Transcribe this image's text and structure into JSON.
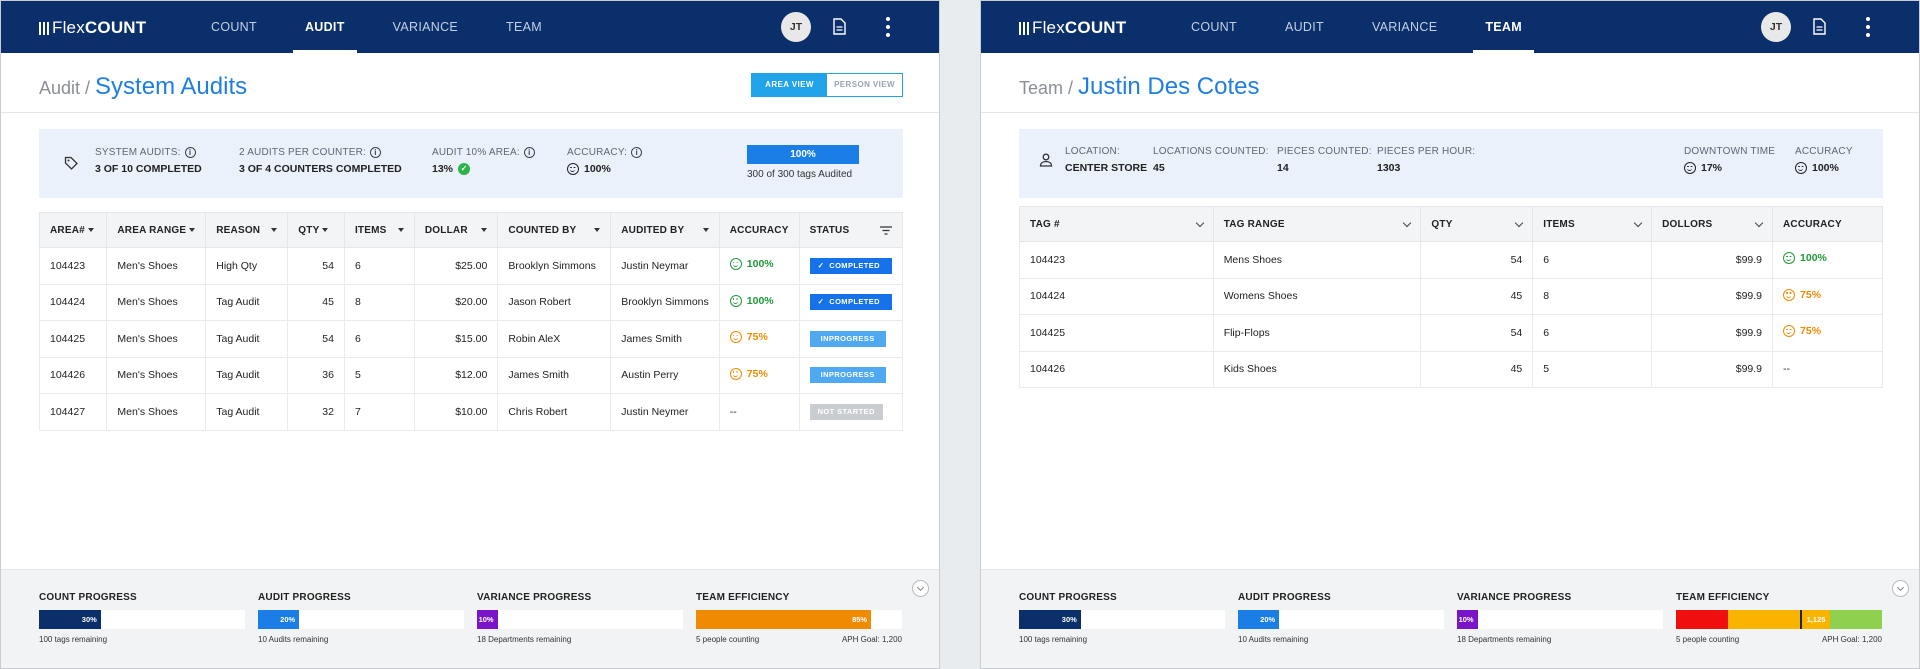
{
  "brand": {
    "lite": "Flex",
    "bold": "COUNT"
  },
  "left": {
    "nav": [
      {
        "label": "COUNT",
        "active": false
      },
      {
        "label": "AUDIT",
        "active": true
      },
      {
        "label": "VARIANCE",
        "active": false
      },
      {
        "label": "TEAM",
        "active": false
      }
    ],
    "avatar": "JT",
    "breadcrumb": {
      "parent": "Audit /",
      "title": "System Audits"
    },
    "view_toggle": {
      "area": "AREA VIEW",
      "person": "PERSON VIEW",
      "selected": "AREA VIEW"
    },
    "summary": {
      "system_audits": {
        "label": "SYSTEM AUDITS:",
        "value": "3 OF 10 COMPLETED"
      },
      "per_counter": {
        "label": "2 AUDITS PER COUNTER:",
        "value": "3 OF 4 COUNTERS COMPLETED"
      },
      "area": {
        "label": "AUDIT 10% AREA:",
        "value": "13%"
      },
      "accuracy": {
        "label": "ACCURACY:",
        "value": "100%"
      },
      "tags": {
        "bar": "100%",
        "note": "300 of 300 tags Audited",
        "percent": 100
      }
    },
    "table": {
      "headers": [
        "AREA#",
        "AREA RANGE",
        "REASON",
        "QTY",
        "ITEMS",
        "DOLLAR",
        "COUNTED BY",
        "AUDITED BY",
        "ACCURACY",
        "STATUS"
      ],
      "rows": [
        {
          "area": "104423",
          "range": "Men's Shoes",
          "reason": "High Qty",
          "qty": "54",
          "items": "6",
          "dollar": "$25.00",
          "counted": "Brooklyn Simmons",
          "audited": "Justin Neymar",
          "accuracy": "100%",
          "acc_state": "good",
          "status": "COMPLETED",
          "status_kind": "completed"
        },
        {
          "area": "104424",
          "range": "Men's Shoes",
          "reason": "Tag Audit",
          "qty": "45",
          "items": "8",
          "dollar": "$20.00",
          "counted": "Jason Robert",
          "audited": "Brooklyn Simmons",
          "accuracy": "100%",
          "acc_state": "good",
          "status": "COMPLETED",
          "status_kind": "completed"
        },
        {
          "area": "104425",
          "range": "Men's Shoes",
          "reason": "Tag Audit",
          "qty": "54",
          "items": "6",
          "dollar": "$15.00",
          "counted": "Robin AleX",
          "audited": "James Smith",
          "accuracy": "75%",
          "acc_state": "warn",
          "status": "INPROGRESS",
          "status_kind": "inprog"
        },
        {
          "area": "104426",
          "range": "Men's Shoes",
          "reason": "Tag Audit",
          "qty": "36",
          "items": "5",
          "dollar": "$12.00",
          "counted": "James Smith",
          "audited": "Austin Perry",
          "accuracy": "75%",
          "acc_state": "warn",
          "status": "INPROGRESS",
          "status_kind": "inprog"
        },
        {
          "area": "104427",
          "range": "Men's Shoes",
          "reason": "Tag Audit",
          "qty": "32",
          "items": "7",
          "dollar": "$10.00",
          "counted": "Chris Robert",
          "audited": "Justin Neymer",
          "accuracy": "--",
          "acc_state": "none",
          "status": "NOT STARTED",
          "status_kind": "notstart"
        }
      ]
    },
    "footer": {
      "count": {
        "title": "COUNT PROGRESS",
        "label": "30%",
        "percent": 30,
        "note": "100 tags remaining"
      },
      "audit": {
        "title": "AUDIT PROGRESS",
        "label": "20%",
        "percent": 20,
        "note": "10 Audits remaining"
      },
      "variance": {
        "title": "VARIANCE PROGRESS",
        "label": "10%",
        "percent": 10,
        "note": "18 Departments remaining"
      },
      "team": {
        "title": "TEAM EFFICIENCY",
        "label": "85%",
        "percent": 85,
        "note": "5 people counting",
        "goal": "APH Goal: 1,200"
      }
    }
  },
  "right": {
    "nav": [
      {
        "label": "COUNT",
        "active": false
      },
      {
        "label": "AUDIT",
        "active": false
      },
      {
        "label": "VARIANCE",
        "active": false
      },
      {
        "label": "TEAM",
        "active": true
      }
    ],
    "avatar": "JT",
    "breadcrumb": {
      "parent": "Team /",
      "title": "Justin Des Cotes"
    },
    "summary": {
      "location": {
        "label": "LOCATION:",
        "value": "CENTER STORE"
      },
      "locations_counted": {
        "label": "LOCATIONS COUNTED:",
        "value": "45"
      },
      "pieces_counted": {
        "label": "PIECES COUNTED:",
        "value": "14"
      },
      "pieces_per_hour": {
        "label": "PIECES PER HOUR:",
        "value": "1303"
      },
      "downtown": {
        "label": "DOWNTOWN TIME",
        "value": "17%"
      },
      "accuracy": {
        "label": "ACCURACY",
        "value": "100%"
      }
    },
    "table": {
      "headers": [
        "TAG #",
        "TAG RANGE",
        "QTY",
        "ITEMS",
        "DOLLORS",
        "ACCURACY"
      ],
      "rows": [
        {
          "tag": "104423",
          "range": "Mens Shoes",
          "qty": "54",
          "items": "6",
          "dollars": "$99.9",
          "accuracy": "100%",
          "acc_state": "good"
        },
        {
          "tag": "104424",
          "range": "Womens Shoes",
          "qty": "45",
          "items": "8",
          "dollars": "$99.9",
          "accuracy": "75%",
          "acc_state": "warn"
        },
        {
          "tag": "104425",
          "range": "Flip-Flops",
          "qty": "54",
          "items": "6",
          "dollars": "$99.9",
          "accuracy": "75%",
          "acc_state": "warn"
        },
        {
          "tag": "104426",
          "range": "Kids Shoes",
          "qty": "45",
          "items": "5",
          "dollars": "$99.9",
          "accuracy": "--",
          "acc_state": "none"
        }
      ]
    },
    "footer": {
      "count": {
        "title": "COUNT PROGRESS",
        "label": "30%",
        "percent": 30,
        "note": "100 tags remaining"
      },
      "audit": {
        "title": "AUDIT PROGRESS",
        "label": "20%",
        "percent": 20,
        "note": "10 Audits remaining"
      },
      "variance": {
        "title": "VARIANCE PROGRESS",
        "label": "10%",
        "percent": 10,
        "note": "18 Departments remaining"
      },
      "team": {
        "title": "TEAM EFFICIENCY",
        "label": "1,125",
        "value": 1125,
        "note": "5 people counting",
        "goal": "APH Goal: 1,200"
      }
    }
  },
  "colors": {
    "navy": "#0a2f6b",
    "accent_blue": "#1f7fe0",
    "good": "#1f9a3a",
    "warn": "#f08a00",
    "count_bar": "#0a2f6b",
    "audit_bar": "#1b7de6",
    "variance_bar": "#7a14c8",
    "team_bar": "#f08a00"
  }
}
